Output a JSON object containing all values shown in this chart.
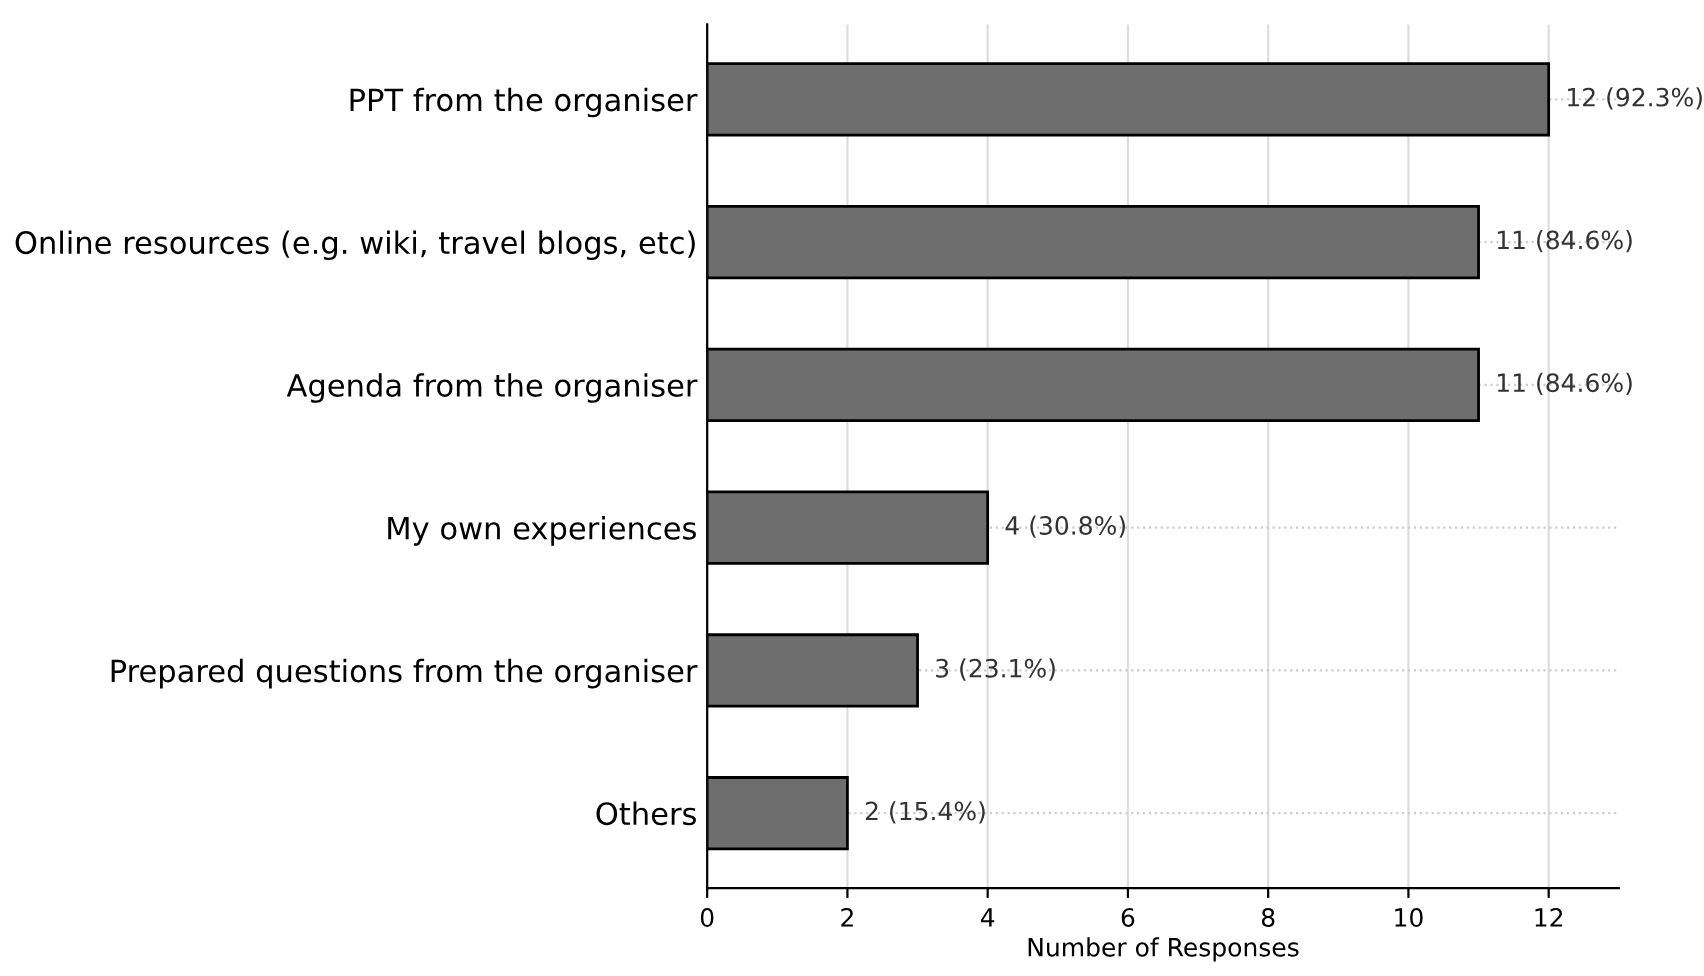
{
  "chart_data": {
    "type": "bar",
    "orientation": "horizontal",
    "categories": [
      "PPT from the organiser",
      "Online resources (e.g. wiki, travel blogs, etc)",
      "Agenda from the organiser",
      "My own experiences",
      "Prepared questions from the organiser",
      "Others"
    ],
    "values": [
      12,
      11,
      11,
      4,
      3,
      2
    ],
    "value_labels": [
      "12 (92.3%)",
      "11 (84.6%)",
      "11 (84.6%)",
      "4 (30.8%)",
      "3 (23.1%)",
      "2 (15.4%)"
    ],
    "color": "#6e6e6e",
    "xlabel": "Number of Responses",
    "xlim": [
      0,
      13
    ],
    "xticks": [
      0,
      2,
      4,
      6,
      8,
      10,
      12
    ],
    "grid": true
  }
}
